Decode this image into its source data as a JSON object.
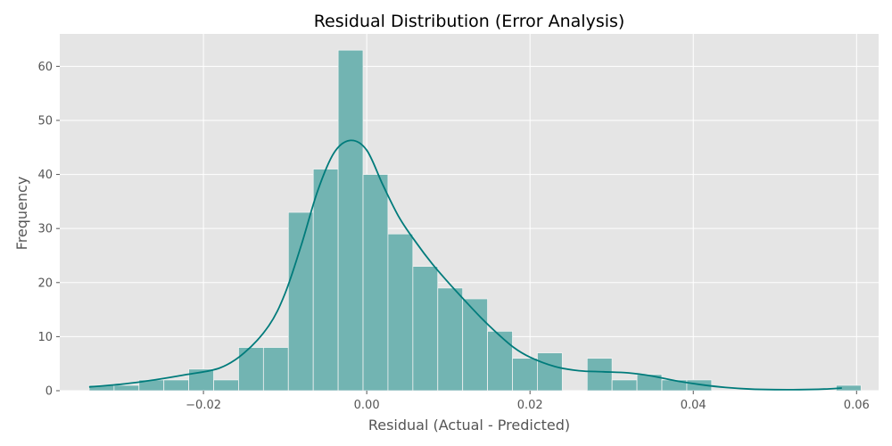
{
  "chart_data": {
    "type": "bar",
    "title": "Residual Distribution (Error Analysis)",
    "xlabel": "Residual (Actual - Predicted)",
    "ylabel": "Frequency",
    "xlim": [
      -0.0376,
      0.0627
    ],
    "ylim": [
      0,
      66
    ],
    "xticks": [
      -0.02,
      0.0,
      0.02,
      0.04,
      0.06
    ],
    "xtick_labels": [
      "−0.02",
      "0.00",
      "0.02",
      "0.04",
      "0.06"
    ],
    "yticks": [
      0,
      10,
      20,
      30,
      40,
      50,
      60
    ],
    "ytick_labels": [
      "0",
      "10",
      "20",
      "30",
      "40",
      "50",
      "60"
    ],
    "grid": true,
    "legend": "none",
    "bins": {
      "start": -0.034,
      "width": 0.00305,
      "counts": [
        1,
        1,
        2,
        2,
        4,
        2,
        8,
        8,
        33,
        41,
        63,
        40,
        29,
        23,
        19,
        17,
        11,
        6,
        7,
        0,
        6,
        2,
        3,
        2,
        2,
        0,
        0,
        0,
        0,
        0,
        1
      ]
    },
    "kde": {
      "x": [
        -0.034,
        -0.03,
        -0.026,
        -0.022,
        -0.018,
        -0.015,
        -0.012,
        -0.01,
        -0.008,
        -0.006,
        -0.004,
        -0.002,
        0.0,
        0.002,
        0.004,
        0.006,
        0.008,
        0.01,
        0.012,
        0.014,
        0.016,
        0.018,
        0.02,
        0.023,
        0.026,
        0.029,
        0.032,
        0.035,
        0.038,
        0.041,
        0.044,
        0.047,
        0.05,
        0.053,
        0.056,
        0.0582
      ],
      "y": [
        0.7,
        1.2,
        2.0,
        3.0,
        4.2,
        7.0,
        12.0,
        18.0,
        27.0,
        37.0,
        44.0,
        46.3,
        44.5,
        38.0,
        32.0,
        27.5,
        23.5,
        20.0,
        16.7,
        13.5,
        10.6,
        8.0,
        6.2,
        4.5,
        3.7,
        3.5,
        3.3,
        2.7,
        1.8,
        1.1,
        0.6,
        0.3,
        0.2,
        0.2,
        0.3,
        0.5
      ]
    },
    "colors": {
      "bar_fill": "#72b4b2",
      "bar_edge": "#f2f2f2",
      "kde_line": "#007b7b",
      "plot_background": "#e5e5e5",
      "grid": "#ffffff"
    }
  }
}
